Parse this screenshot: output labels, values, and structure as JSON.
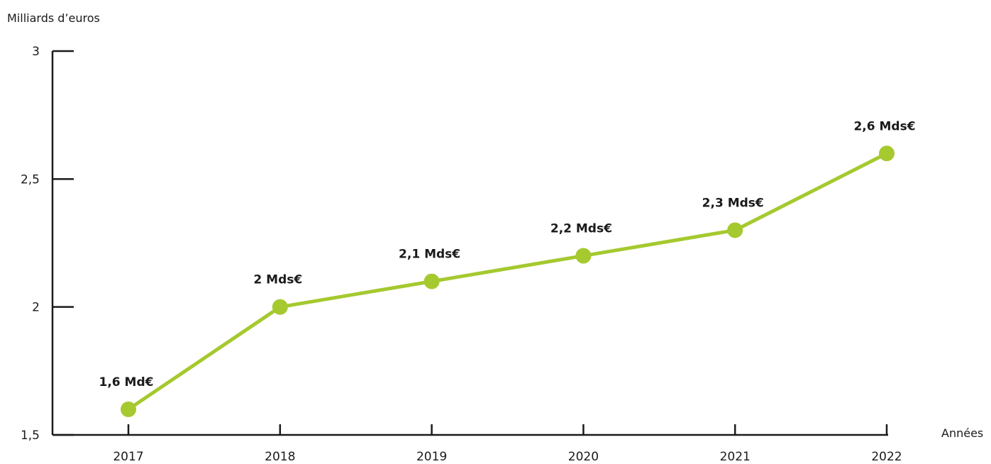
{
  "chart_data": {
    "type": "line",
    "title": "",
    "ylabel": "Milliards d’euros",
    "xlabel": "Années",
    "x": [
      "2017",
      "2018",
      "2019",
      "2020",
      "2021",
      "2022"
    ],
    "series": [
      {
        "values": [
          1.6,
          2.0,
          2.1,
          2.2,
          2.3,
          2.6
        ],
        "labels": [
          "1,6 Md€",
          "2 Mds€",
          "2,1 Mds€",
          "2,2 Mds€",
          "2,3 Mds€",
          "2,6 Mds€"
        ],
        "color": "#a5c92f"
      }
    ],
    "ylim": [
      1.5,
      3
    ],
    "yticks": [
      1.5,
      2,
      2.5,
      3
    ],
    "ytick_labels": [
      "1,5",
      "2",
      "2,5",
      "3"
    ],
    "grid": false,
    "legend": "none"
  }
}
